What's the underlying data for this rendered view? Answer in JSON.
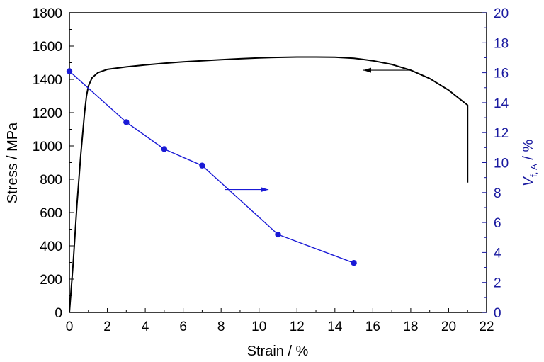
{
  "chart_data": {
    "type": "line",
    "xlabel": "Strain / %",
    "ylabel_left": "Stress / MPa",
    "ylabel_right": {
      "italic": "V",
      "subscript": "f, A",
      "suffix": " / %"
    },
    "xlim": [
      0,
      22
    ],
    "ylim_left": [
      0,
      1800
    ],
    "ylim_right": [
      0,
      20
    ],
    "x_ticks": [
      "0",
      "2",
      "4",
      "6",
      "8",
      "10",
      "12",
      "14",
      "16",
      "18",
      "20",
      "22"
    ],
    "y_left_ticks": [
      "0",
      "200",
      "400",
      "600",
      "800",
      "1000",
      "1200",
      "1400",
      "1600",
      "1800"
    ],
    "y_right_ticks": [
      "0",
      "2",
      "4",
      "6",
      "8",
      "10",
      "12",
      "14",
      "16",
      "18",
      "20"
    ],
    "grid": false,
    "series": [
      {
        "axis": "left",
        "color": "#000000",
        "marker": "none",
        "x": [
          0,
          0.2,
          0.4,
          0.6,
          0.8,
          0.9,
          1.0,
          1.2,
          1.5,
          2,
          3,
          4,
          5,
          6,
          7,
          8,
          9,
          10,
          11,
          12,
          13,
          14,
          15,
          16,
          17,
          18,
          19,
          20,
          20.5,
          21,
          21,
          21
        ],
        "y": [
          0,
          300,
          650,
          950,
          1200,
          1300,
          1360,
          1410,
          1440,
          1460,
          1475,
          1487,
          1497,
          1505,
          1512,
          1518,
          1524,
          1529,
          1532,
          1534,
          1534,
          1533,
          1527,
          1512,
          1490,
          1455,
          1405,
          1335,
          1290,
          1245,
          1000,
          780
        ]
      },
      {
        "axis": "right",
        "color": "#1a1ad6",
        "marker": "circle",
        "x": [
          0,
          3,
          5,
          7,
          11,
          15
        ],
        "y": [
          16.1,
          12.7,
          10.9,
          9.8,
          5.2,
          3.3
        ]
      }
    ],
    "annotations": [
      {
        "type": "arrow",
        "axis": "left",
        "direction": "left",
        "color": "#000000",
        "x_from": 18,
        "x_to": 15.5,
        "y": 1455
      },
      {
        "type": "arrow",
        "axis": "right",
        "direction": "right",
        "color": "#1a1ad6",
        "x_from": 8.2,
        "x_to": 10.5,
        "y": 8.2
      }
    ]
  }
}
